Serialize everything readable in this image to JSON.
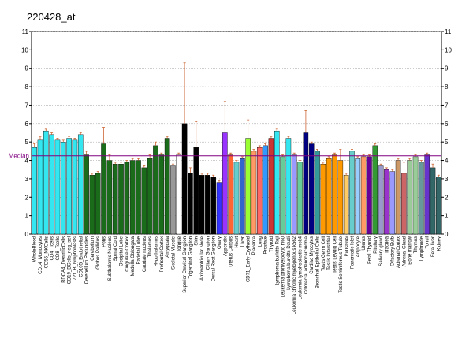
{
  "chart_data": {
    "type": "bar",
    "title": "220428_at",
    "median": 4.25,
    "median_label": "Median",
    "median_color": "#800080",
    "ylim": [
      0,
      11
    ],
    "yticks": [
      0,
      1,
      2,
      3,
      4,
      5,
      6,
      7,
      8,
      9,
      10,
      11
    ],
    "grid": true,
    "error_color": "#cc6633",
    "categories": [
      "WholeBlood",
      "CD14_Monocytes",
      "CD56_NKCells",
      "CD4_Tcells",
      "CD8_Tcells",
      "BDCA4_DentriticCells",
      "CD19_BCells_neg_sel",
      "721_B_lymphoblasts",
      "CD105_Endothelial",
      "Cerebellum Peduncles",
      "Cerebellum",
      "Globus Pallidus",
      "Pons",
      "Subthalamic Nucleus",
      "Spinal Cord",
      "Occipital Lobe",
      "Cingulate Cortex",
      "Medulla Oblongata",
      "Parietal Lobe",
      "Caudate nucleus",
      "Thalamus",
      "Hypothalamus",
      "Prefrontal Cortex",
      "Amygdala",
      "Skeletal Muscle",
      "Tongue",
      "Superior Cervical Ganglion",
      "Trigeminal Ganglion",
      "Skin",
      "Atrioventricular Node",
      "Ciliary Ganglion",
      "Dorsal Root Ganglion",
      "Ovary",
      "Appendix",
      "Uterus Corpus",
      "Heart",
      "Liver",
      "CD71_Early Erythroid",
      "Placenta",
      "Lung",
      "Prostate",
      "Thyroid",
      "Lymphoma burkitts Raji",
      "Leukemia promyelocytic hl60",
      "Lymphoma burkitts Daudi",
      "Leukemia chronic myelogenous k562",
      "Leukemia lymphoblastic molt4",
      "Colorectal adenocarcinoma",
      "Cardiac Myocytes",
      "Bronchial Epithelial Cells",
      "Testis Germ Cell",
      "Testis Interstitial",
      "Testis Leydig Cell",
      "Testis Seminiferous Tubule",
      "Pancreas",
      "Pancreatic Islet",
      "Adipocyte",
      "Uterus",
      "Fetal Thyroid",
      "Pituitary",
      "Salivary gland",
      "Trachea",
      "Olfactory Bulb",
      "Adrenal Cortex",
      "Adrenal Gland",
      "Bone marrow",
      "Thymus",
      "Lymphnode",
      "Tonsil",
      "Fetal liver",
      "Kidney"
    ],
    "values": [
      4.7,
      5.1,
      5.6,
      5.4,
      5.1,
      5.0,
      5.2,
      5.1,
      5.4,
      4.3,
      3.2,
      3.3,
      4.9,
      4.0,
      3.8,
      3.8,
      3.9,
      4.0,
      4.0,
      3.6,
      4.1,
      4.8,
      4.3,
      5.2,
      3.7,
      4.3,
      6.0,
      3.3,
      4.7,
      3.2,
      3.2,
      3.1,
      2.8,
      5.5,
      4.3,
      3.9,
      4.1,
      5.2,
      4.5,
      4.7,
      4.8,
      5.2,
      5.6,
      4.2,
      5.2,
      4.3,
      3.9,
      5.5,
      4.9,
      4.5,
      3.8,
      4.1,
      4.3,
      4.0,
      3.2,
      4.5,
      4.1,
      4.2,
      4.2,
      4.8,
      3.7,
      3.5,
      3.4,
      4.0,
      3.3,
      4.0,
      4.2,
      3.9,
      4.3,
      3.6,
      3.1
    ],
    "errors": [
      0.2,
      0.2,
      0.1,
      0.1,
      0.1,
      0.1,
      0.1,
      0.1,
      0.1,
      0.2,
      0.1,
      0.1,
      0.9,
      0.3,
      0.1,
      0.1,
      0.1,
      0.1,
      0.1,
      0.1,
      0.2,
      0.2,
      0.1,
      0.1,
      0.1,
      0.1,
      3.3,
      0.3,
      1.4,
      0.1,
      0.1,
      0.1,
      0.1,
      1.7,
      0.1,
      0.1,
      0.1,
      1.0,
      0.1,
      0.1,
      0.1,
      0.1,
      0.1,
      0.1,
      0.1,
      0.1,
      0.1,
      1.2,
      0.1,
      0.1,
      0.1,
      0.1,
      0.1,
      0.6,
      0.1,
      0.1,
      0.1,
      0.1,
      0.1,
      0.1,
      0.1,
      0.1,
      0.1,
      0.1,
      0.6,
      0.1,
      0.1,
      0.1,
      0.1,
      0.2,
      0.1
    ],
    "colors": [
      "#33e6f0",
      "#33e6f0",
      "#33e6f0",
      "#33e6f0",
      "#33e6f0",
      "#33e6f0",
      "#33e6f0",
      "#33e6f0",
      "#33e6f0",
      "#1a6b1a",
      "#1a6b1a",
      "#1a6b1a",
      "#1a6b1a",
      "#1a6b1a",
      "#1a6b1a",
      "#1a6b1a",
      "#1a6b1a",
      "#1a6b1a",
      "#1a6b1a",
      "#1a6b1a",
      "#1a6b1a",
      "#1a6b1a",
      "#1a6b1a",
      "#1a6b1a",
      "#999999",
      "#ffffff",
      "#000000",
      "#000000",
      "#000000",
      "#000000",
      "#000000",
      "#000000",
      "#3333ff",
      "#9933ff",
      "#ff6633",
      "#66cccc",
      "#3366cc",
      "#99ff33",
      "#ff9966",
      "#ff6666",
      "#3399ff",
      "#cc3333",
      "#33e6f0",
      "#66cc99",
      "#33e6f0",
      "#9999ff",
      "#66cc99",
      "#000080",
      "#000080",
      "#339999",
      "#ff9900",
      "#ff9900",
      "#ff9900",
      "#ff9900",
      "#ffcc66",
      "#66cccc",
      "#99ccff",
      "#ff9966",
      "#660099",
      "#339933",
      "#9999cc",
      "#9933cc",
      "#9999ff",
      "#cc9966",
      "#cc6666",
      "#99cc99",
      "#99cc99",
      "#669999",
      "#6633cc",
      "#336666",
      "#336666"
    ]
  }
}
